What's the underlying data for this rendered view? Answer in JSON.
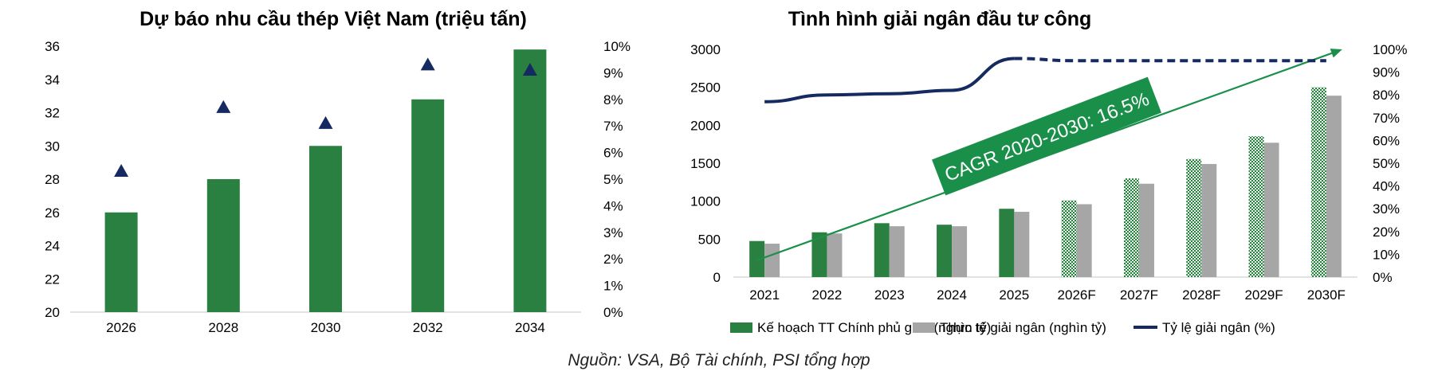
{
  "source_note": "Nguồn: VSA, Bộ Tài chính, PSI tổng hợp",
  "colors": {
    "green": "#2a8040",
    "gray": "#a6a6a6",
    "navy": "#142a60",
    "axis": "#d9d9d9",
    "badge": "#1a8f4a",
    "badge_text": "#ffffff"
  },
  "chart_data": [
    {
      "type": "bar",
      "title": "Dự báo nhu cầu thép Việt Nam (triệu tấn)",
      "categories": [
        "2026",
        "2028",
        "2030",
        "2032",
        "2034"
      ],
      "values": [
        26,
        28,
        30,
        32.8,
        35.8
      ],
      "secondary_markers": {
        "marker": "triangle",
        "values": [
          5.3,
          7.7,
          7.1,
          9.3,
          9.1
        ]
      },
      "ylim": [
        20,
        36
      ],
      "yticks": [
        "20",
        "22",
        "24",
        "26",
        "28",
        "30",
        "32",
        "34",
        "36"
      ],
      "y2lim": [
        0,
        10
      ],
      "y2ticks": [
        "0%",
        "1%",
        "2%",
        "3%",
        "4%",
        "5%",
        "6%",
        "7%",
        "8%",
        "9%",
        "10%"
      ],
      "grid": false,
      "legend": "none"
    },
    {
      "type": "bar",
      "title": "Tình hình giải ngân đầu tư công",
      "categories": [
        "2021",
        "2022",
        "2023",
        "2024",
        "2025",
        "2026F",
        "2027F",
        "2028F",
        "2029F",
        "2030F"
      ],
      "forecast_from_index": 5,
      "series": [
        {
          "name": "Kế hoạch TT Chính phủ giao (nghìn tỷ)",
          "values": [
            475,
            590,
            710,
            690,
            900,
            1010,
            1300,
            1555,
            1855,
            2500
          ]
        },
        {
          "name": "Thực tế giải ngân (nghìn tỷ)",
          "values": [
            440,
            575,
            670,
            670,
            860,
            960,
            1230,
            1490,
            1770,
            2390
          ]
        },
        {
          "name": "Tỷ lệ giải ngân (%)",
          "type": "line",
          "axis": "secondary",
          "dashed_from_index": 4,
          "values": [
            77,
            80,
            80.5,
            82,
            96,
            95,
            95,
            95,
            95,
            95
          ]
        }
      ],
      "ylim": [
        0,
        3000
      ],
      "yticks": [
        "0",
        "500",
        "1000",
        "1500",
        "2000",
        "2500",
        "3000"
      ],
      "y2lim": [
        0,
        100
      ],
      "y2ticks": [
        "0%",
        "10%",
        "20%",
        "30%",
        "40%",
        "50%",
        "60%",
        "70%",
        "80%",
        "90%",
        "100%"
      ],
      "annotation": "CAGR 2020-2030: 16.5%",
      "trend_arrow": {
        "from": [
          "2021",
          220
        ],
        "to": [
          "2030F",
          3000
        ]
      },
      "grid": false,
      "legend": "bottom"
    }
  ]
}
